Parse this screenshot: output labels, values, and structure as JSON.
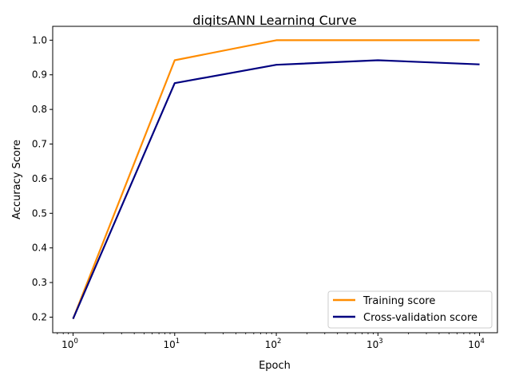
{
  "chart_data": {
    "type": "line",
    "title": "digitsANN Learning Curve",
    "xlabel": "Epoch",
    "ylabel": "Accuracy Score",
    "xscale": "log",
    "x": [
      1,
      10,
      100,
      1000,
      10000
    ],
    "x_tick_labels": [
      {
        "base": "10",
        "exp": "0"
      },
      {
        "base": "10",
        "exp": "1"
      },
      {
        "base": "10",
        "exp": "2"
      },
      {
        "base": "10",
        "exp": "3"
      },
      {
        "base": "10",
        "exp": "4"
      }
    ],
    "y_ticks": [
      "0.2",
      "0.3",
      "0.4",
      "0.5",
      "0.6",
      "0.7",
      "0.8",
      "0.9",
      "1.0"
    ],
    "xlim": [
      0.63,
      15000
    ],
    "ylim": [
      0.155,
      1.04
    ],
    "grid": false,
    "legend_position": "bottom-right",
    "series": [
      {
        "name": "Training score",
        "color": "#ff8c00",
        "values": [
          0.195,
          0.942,
          1.0,
          1.0,
          1.0
        ]
      },
      {
        "name": "Cross-validation score",
        "color": "#000080",
        "values": [
          0.195,
          0.876,
          0.929,
          0.942,
          0.93
        ]
      }
    ]
  }
}
